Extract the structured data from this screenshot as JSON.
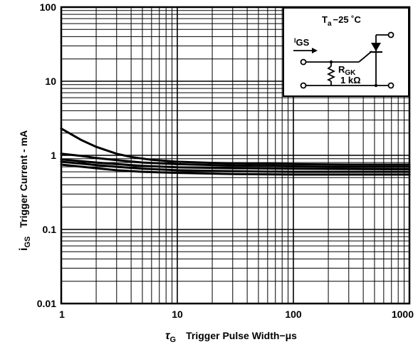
{
  "chart_data": {
    "type": "line",
    "x_scale": "log",
    "y_scale": "log",
    "xlim": [
      1,
      1000
    ],
    "ylim": [
      0.01,
      100
    ],
    "grid": true,
    "xlabel_symbol": "τ",
    "xlabel_sub": "G",
    "xlabel_text": "Trigger Pulse Width−μs",
    "ylabel_symbol": "i",
    "ylabel_sub": "GS",
    "ylabel_text": "Trigger Current - mA",
    "x_ticks": [
      {
        "value": 1,
        "label": "1"
      },
      {
        "value": 10,
        "label": "10"
      },
      {
        "value": 100,
        "label": "100"
      },
      {
        "value": 1000,
        "label": "1000"
      }
    ],
    "y_ticks": [
      {
        "value": 0.01,
        "label": "0.01"
      },
      {
        "value": 0.1,
        "label": "0.1"
      },
      {
        "value": 1,
        "label": "1"
      },
      {
        "value": 10,
        "label": "10"
      },
      {
        "value": 100,
        "label": "100"
      }
    ],
    "series": [
      {
        "x": [
          1,
          1.5,
          2,
          3,
          4,
          6,
          10,
          20,
          50,
          100,
          300,
          1000
        ],
        "y": [
          2.3,
          1.6,
          1.3,
          1.05,
          0.95,
          0.87,
          0.82,
          0.79,
          0.77,
          0.76,
          0.75,
          0.75
        ]
      },
      {
        "x": [
          1,
          1.5,
          2,
          3,
          5,
          10,
          20,
          50,
          100,
          300,
          1000
        ],
        "y": [
          1.05,
          0.98,
          0.92,
          0.86,
          0.8,
          0.76,
          0.74,
          0.72,
          0.71,
          0.7,
          0.7
        ]
      },
      {
        "x": [
          1,
          2,
          3,
          5,
          10,
          30,
          100,
          1000
        ],
        "y": [
          0.88,
          0.8,
          0.76,
          0.72,
          0.69,
          0.67,
          0.66,
          0.65
        ]
      },
      {
        "x": [
          1,
          2,
          3,
          5,
          10,
          30,
          100,
          1000
        ],
        "y": [
          0.82,
          0.74,
          0.7,
          0.66,
          0.63,
          0.61,
          0.6,
          0.6
        ]
      },
      {
        "x": [
          1,
          2,
          3,
          5,
          10,
          30,
          100,
          1000
        ],
        "y": [
          0.75,
          0.67,
          0.63,
          0.6,
          0.58,
          0.56,
          0.55,
          0.55
        ]
      }
    ],
    "inset": {
      "ta_symbol": "T",
      "ta_sub": "a",
      "ta_text": "−25 ˚C",
      "igs_symbol": "I",
      "igs_sub": "GS",
      "rgk_symbol": "R",
      "rgk_sub": "GK",
      "rgk_value": "1 kΩ"
    }
  }
}
